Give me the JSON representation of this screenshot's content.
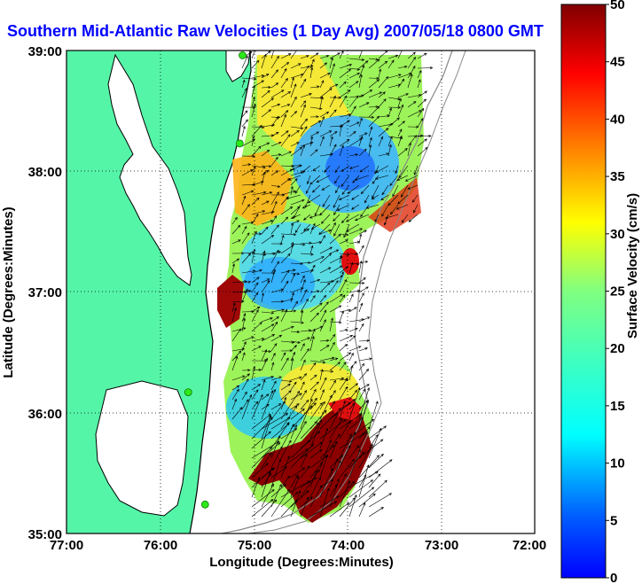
{
  "title": "Southern Mid-Atlantic Raw Velocities (1 Day Avg) 2007/05/18 0800 GMT",
  "xlabel": "Longitude (Degrees:Minutes)",
  "ylabel": "Latitude (Degrees:Minutes)",
  "x_ticks": [
    "77:00",
    "76:00",
    "75:00",
    "74:00",
    "73:00",
    "72:00"
  ],
  "y_ticks": [
    "39:00",
    "38:00",
    "37:00",
    "36:00",
    "35:00"
  ],
  "colorbar": {
    "label": "Surface Velocity (cm/s)",
    "ticks": [
      "0",
      "5",
      "10",
      "15",
      "20",
      "25",
      "30",
      "35",
      "40",
      "45",
      "50"
    ],
    "min": 0,
    "max": 50
  },
  "colors": {
    "title": "#0000ff",
    "land": "#55f5a8",
    "water": "#ffffff",
    "grid": "#000000",
    "arrows": "#000000",
    "stations": "#2ee81a"
  },
  "map": {
    "lon_range": [
      -77,
      -72
    ],
    "lat_range": [
      35,
      39
    ],
    "gridlines": "dotted",
    "stations": [
      {
        "lon": -75.12,
        "lat": 38.96
      },
      {
        "lon": -75.15,
        "lat": 38.23
      },
      {
        "lon": -75.7,
        "lat": 36.17
      },
      {
        "lon": -75.52,
        "lat": 35.24
      }
    ]
  }
}
